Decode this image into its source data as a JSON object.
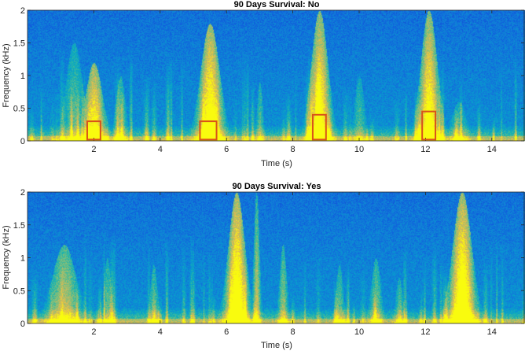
{
  "chart_data": [
    {
      "type": "heatmap",
      "title": "90 Days Survival: No",
      "xlabel": "Time (s)",
      "ylabel": "Frequency (kHz)",
      "xlim": [
        0,
        15
      ],
      "ylim": [
        0,
        2
      ],
      "xticks": [
        2,
        4,
        6,
        8,
        10,
        12,
        14
      ],
      "yticks": [
        0,
        0.5,
        1,
        1.5,
        2
      ],
      "colormap": "parula",
      "bright_bands": [
        {
          "t": 1.4,
          "w": 0.35,
          "f_max": 1.5,
          "i": 0.35
        },
        {
          "t": 2.0,
          "w": 0.35,
          "f_max": 1.2,
          "i": 0.8
        },
        {
          "t": 2.8,
          "w": 0.2,
          "f_max": 1.0,
          "i": 0.4
        },
        {
          "t": 5.5,
          "w": 0.4,
          "f_max": 1.8,
          "i": 0.9
        },
        {
          "t": 7.0,
          "w": 0.12,
          "f_max": 0.9,
          "i": 0.35
        },
        {
          "t": 8.8,
          "w": 0.35,
          "f_max": 2.0,
          "i": 0.85
        },
        {
          "t": 10.0,
          "w": 0.2,
          "f_max": 1.0,
          "i": 0.3
        },
        {
          "t": 12.1,
          "w": 0.35,
          "f_max": 2.0,
          "i": 0.85
        },
        {
          "t": 13.0,
          "w": 0.3,
          "f_max": 0.6,
          "i": 0.3
        }
      ],
      "highlight_boxes": [
        {
          "t0": 1.8,
          "t1": 2.2,
          "f0": 0.02,
          "f1": 0.3
        },
        {
          "t0": 5.2,
          "t1": 5.7,
          "f0": 0.02,
          "f1": 0.3
        },
        {
          "t0": 8.6,
          "t1": 9.0,
          "f0": 0.02,
          "f1": 0.4
        },
        {
          "t0": 11.9,
          "t1": 12.3,
          "f0": 0.02,
          "f1": 0.45
        }
      ],
      "box_color": "#d95319"
    },
    {
      "type": "heatmap",
      "title": "90 Days Survival: Yes",
      "xlabel": "Time (s)",
      "ylabel": "Frequency (kHz)",
      "xlim": [
        0,
        15
      ],
      "ylim": [
        0,
        2
      ],
      "xticks": [
        2,
        4,
        6,
        8,
        10,
        12,
        14
      ],
      "yticks": [
        0,
        0.5,
        1,
        1.5,
        2
      ],
      "colormap": "parula",
      "bright_bands": [
        {
          "t": 1.1,
          "w": 0.5,
          "f_max": 1.2,
          "i": 0.55
        },
        {
          "t": 2.4,
          "w": 0.15,
          "f_max": 1.0,
          "i": 0.35
        },
        {
          "t": 3.8,
          "w": 0.15,
          "f_max": 0.9,
          "i": 0.35
        },
        {
          "t": 6.3,
          "w": 0.35,
          "f_max": 2.0,
          "i": 0.95
        },
        {
          "t": 6.9,
          "w": 0.12,
          "f_max": 2.0,
          "i": 0.55
        },
        {
          "t": 7.7,
          "w": 0.15,
          "f_max": 1.2,
          "i": 0.45
        },
        {
          "t": 9.4,
          "w": 0.15,
          "f_max": 0.9,
          "i": 0.35
        },
        {
          "t": 10.5,
          "w": 0.2,
          "f_max": 1.0,
          "i": 0.4
        },
        {
          "t": 11.2,
          "w": 0.15,
          "f_max": 0.7,
          "i": 0.3
        },
        {
          "t": 13.1,
          "w": 0.4,
          "f_max": 2.0,
          "i": 0.95
        }
      ],
      "highlight_boxes": []
    }
  ]
}
